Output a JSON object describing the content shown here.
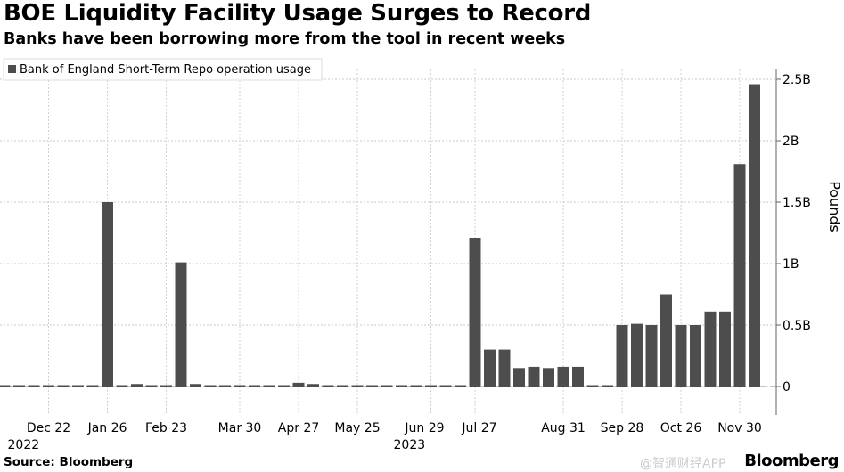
{
  "header": {
    "title": "BOE Liquidity Facility Usage Surges to Record",
    "subtitle": "Banks have been borrowing more from the tool in recent weeks"
  },
  "footer": {
    "source": "Source: Bloomberg",
    "logo": "Bloomberg",
    "watermark": "@智通财经APP"
  },
  "chart_data": {
    "type": "bar",
    "title": "BOE Liquidity Facility Usage Surges to Record",
    "ylabel": "Pounds",
    "ylim": [
      -0.23,
      2.65
    ],
    "y_ticks": [
      {
        "v": 0,
        "label": "0"
      },
      {
        "v": 0.5,
        "label": "0.5B"
      },
      {
        "v": 1,
        "label": "1B"
      },
      {
        "v": 1.5,
        "label": "1.5B"
      },
      {
        "v": 2,
        "label": "2B"
      },
      {
        "v": 2.5,
        "label": "2.5B"
      }
    ],
    "x_ticks": [
      {
        "i": 3,
        "label": "Dec 22",
        "year": "2022"
      },
      {
        "i": 7,
        "label": "Jan 26"
      },
      {
        "i": 11,
        "label": "Feb 23"
      },
      {
        "i": 16,
        "label": "Mar 30"
      },
      {
        "i": 20,
        "label": "Apr 27"
      },
      {
        "i": 24,
        "label": "May 25"
      },
      {
        "i": 29,
        "label": "Jun 29",
        "year": "2023"
      },
      {
        "i": 32,
        "label": "Jul 27"
      },
      {
        "i": 38,
        "label": "Aug 31"
      },
      {
        "i": 42,
        "label": "Sep 28"
      },
      {
        "i": 46,
        "label": "Oct 26"
      },
      {
        "i": 50,
        "label": "Nov 30"
      }
    ],
    "legend": {
      "position": "top-left",
      "entries": [
        "Bank of England Short-Term Repo operation usage"
      ]
    },
    "series": [
      {
        "name": "Bank of England Short-Term Repo operation usage",
        "unit": "billion pounds",
        "color": "#4d4d4d",
        "values": [
          0,
          0,
          0,
          0,
          0,
          0,
          0.01,
          1.5,
          0,
          0.02,
          0,
          0,
          1.01,
          0.02,
          0,
          0.01,
          0,
          0,
          0,
          0.01,
          0.03,
          0.02,
          0,
          0,
          0,
          0,
          0,
          0,
          0,
          0,
          0,
          0.01,
          1.21,
          0.3,
          0.3,
          0.15,
          0.16,
          0.15,
          0.16,
          0.16,
          0,
          0.01,
          0.5,
          0.51,
          0.5,
          0.75,
          0.5,
          0.5,
          0.61,
          0.61,
          1.81,
          2.46
        ]
      }
    ],
    "grid": true
  }
}
